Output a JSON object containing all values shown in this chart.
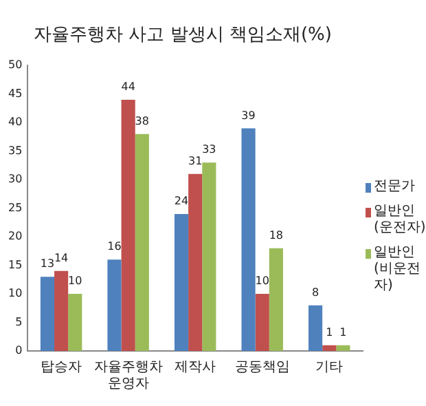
{
  "chart_data": {
    "type": "bar",
    "title": "자율주행차 사고 발생시 책임소재(%)",
    "categories": [
      "탑승자",
      "자율주행차 운영자",
      "제작사",
      "공동책임",
      "기타"
    ],
    "series": [
      {
        "name": "전문가",
        "color": "#4f81bd",
        "values": [
          13,
          16,
          24,
          39,
          8
        ]
      },
      {
        "name": "일반인(운전자)",
        "color": "#c0504d",
        "values": [
          14,
          44,
          31,
          10,
          1
        ]
      },
      {
        "name": "일반인(비운전자)",
        "color": "#9bbb59",
        "values": [
          10,
          38,
          33,
          18,
          1
        ]
      }
    ],
    "ylim": [
      0,
      50
    ],
    "yticks": [
      0,
      5,
      10,
      15,
      20,
      25,
      30,
      35,
      40,
      45,
      50
    ],
    "grid": false,
    "legend": "right",
    "data_labels": true
  }
}
